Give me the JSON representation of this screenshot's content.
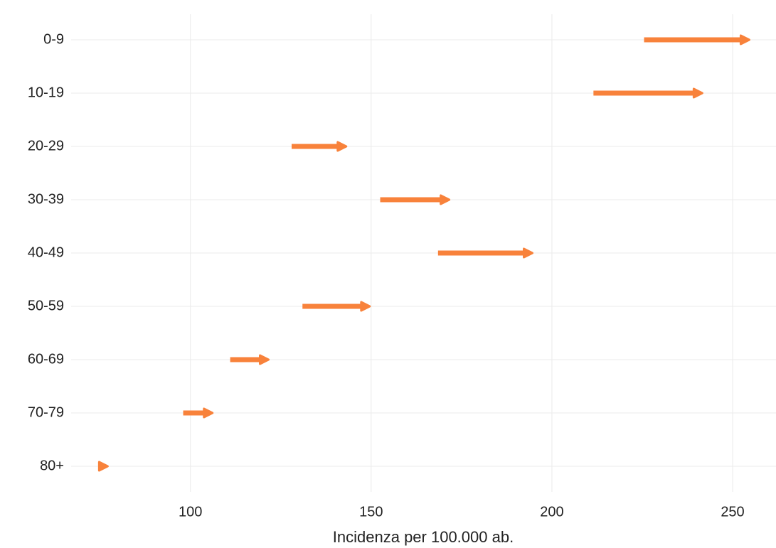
{
  "chart_data": {
    "type": "arrow",
    "categories": [
      "0-9",
      "10-19",
      "20-29",
      "30-39",
      "40-49",
      "50-59",
      "60-69",
      "70-79",
      "80+"
    ],
    "start": [
      225.5,
      211.5,
      128,
      152.5,
      168.5,
      131,
      111,
      98,
      74.5
    ],
    "end": [
      255,
      242,
      143.5,
      172,
      195,
      150,
      122,
      106.5,
      77.5
    ],
    "color": "#f8823b",
    "xlim": [
      67,
      262
    ],
    "xticks": [
      100,
      150,
      200,
      250
    ],
    "xlabel": "Incidenza per 100.000 ab.",
    "grid": true
  }
}
